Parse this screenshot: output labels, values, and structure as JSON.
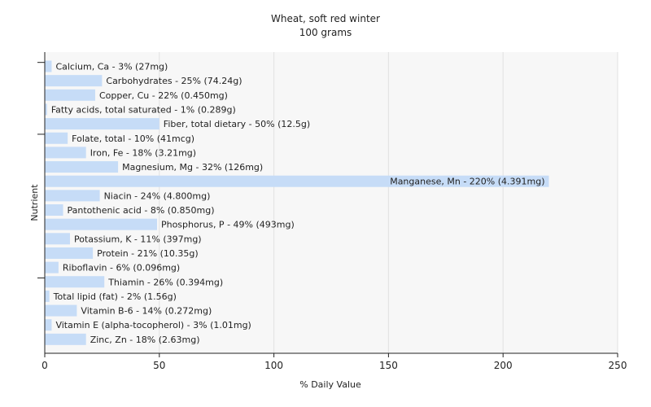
{
  "chart_data": {
    "type": "bar",
    "orientation": "horizontal",
    "title": "Wheat, soft red winter",
    "subtitle": "100 grams",
    "xlabel": "% Daily Value",
    "ylabel": "Nutrient",
    "xlim": [
      0,
      250
    ],
    "xticks": [
      0,
      50,
      100,
      150,
      200,
      250
    ],
    "grid": true,
    "bar_color": "#c6dcf7",
    "categories": [
      "Calcium, Ca - 3% (27mg)",
      "Carbohydrates - 25% (74.24g)",
      "Copper, Cu - 22% (0.450mg)",
      "Fatty acids, total saturated - 1% (0.289g)",
      "Fiber, total dietary - 50% (12.5g)",
      "Folate, total - 10% (41mcg)",
      "Iron, Fe - 18% (3.21mg)",
      "Magnesium, Mg - 32% (126mg)",
      "Manganese, Mn - 220% (4.391mg)",
      "Niacin - 24% (4.800mg)",
      "Pantothenic acid - 8% (0.850mg)",
      "Phosphorus, P - 49% (493mg)",
      "Potassium, K - 11% (397mg)",
      "Protein - 21% (10.35g)",
      "Riboflavin - 6% (0.096mg)",
      "Thiamin - 26% (0.394mg)",
      "Total lipid (fat) - 2% (1.56g)",
      "Vitamin B-6 - 14% (0.272mg)",
      "Vitamin E (alpha-tocopherol) - 3% (1.01mg)",
      "Zinc, Zn - 18% (2.63mg)"
    ],
    "values": [
      3,
      25,
      22,
      1,
      50,
      10,
      18,
      32,
      220,
      24,
      8,
      49,
      11,
      21,
      6,
      26,
      2,
      14,
      3,
      18
    ]
  }
}
